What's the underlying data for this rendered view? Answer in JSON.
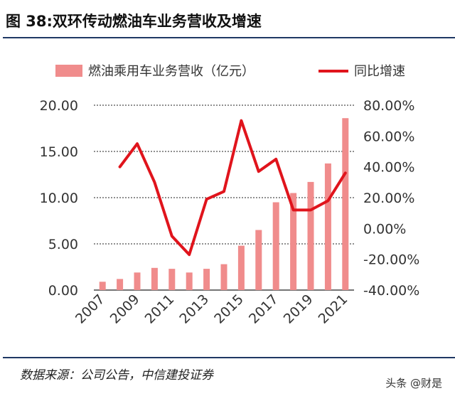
{
  "header": {
    "title": "图 38:双环传动燃油车业务营收及增速"
  },
  "footer": {
    "source": "数据来源：公司公告，中信建投证券",
    "watermark": "头条 @财是"
  },
  "colors": {
    "bar": "#f08c8c",
    "line": "#e0141c",
    "rule": "#1f3864",
    "grid": "#222222",
    "text": "#333333"
  },
  "chart_data": {
    "type": "bar",
    "categories": [
      "2007",
      "2008",
      "2009",
      "2010",
      "2011",
      "2012",
      "2013",
      "2014",
      "2015",
      "2016",
      "2017",
      "2018",
      "2019",
      "2020",
      "2021"
    ],
    "x_tick_labels": [
      "2007",
      "2009",
      "2011",
      "2013",
      "2015",
      "2017",
      "2019",
      "2021"
    ],
    "series": [
      {
        "name": "燃油乘用车业务营收（亿元）",
        "type": "bar",
        "axis": "left",
        "values": [
          0.9,
          1.2,
          1.9,
          2.4,
          2.3,
          1.9,
          2.3,
          2.8,
          4.8,
          6.5,
          9.5,
          10.5,
          11.7,
          13.7,
          18.6
        ]
      },
      {
        "name": "同比增速",
        "type": "line",
        "axis": "right",
        "x": [
          "2008",
          "2009",
          "2010",
          "2011",
          "2012",
          "2013",
          "2014",
          "2015",
          "2016",
          "2017",
          "2018",
          "2019",
          "2020",
          "2021"
        ],
        "values": [
          40,
          55,
          30,
          -5,
          -17,
          19,
          24,
          70,
          37,
          45,
          12,
          12,
          18,
          36
        ]
      }
    ],
    "y_left": {
      "ylim": [
        0,
        20
      ],
      "ticks": [
        "0.00",
        "5.00",
        "10.00",
        "15.00",
        "20.00"
      ]
    },
    "y_right": {
      "ylim": [
        -40,
        80
      ],
      "ticks": [
        "-40.00%",
        "-20.00%",
        "0.00%",
        "20.00%",
        "40.00%",
        "60.00%",
        "80.00%"
      ]
    },
    "grid": true,
    "legend": "top"
  }
}
